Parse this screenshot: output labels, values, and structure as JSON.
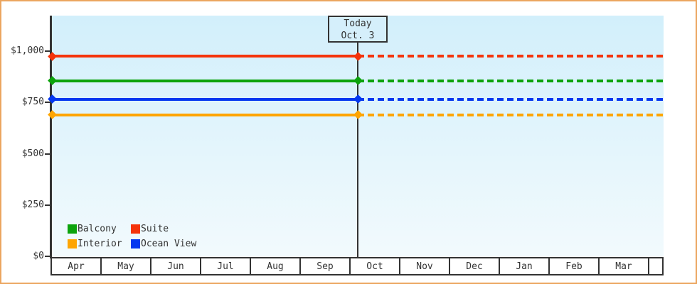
{
  "chart_data": {
    "type": "line",
    "title": "",
    "x_axis": {
      "months": [
        "Apr",
        "May",
        "Jun",
        "Jul",
        "Aug",
        "Sep",
        "Oct",
        "Nov",
        "Dec",
        "Jan",
        "Feb",
        "Mar"
      ]
    },
    "y_axis": {
      "range": [
        0,
        1000
      ],
      "ticks": [
        {
          "label": "$0",
          "value": 0
        },
        {
          "label": "$250",
          "value": 250
        },
        {
          "label": "$500",
          "value": 500
        },
        {
          "label": "$750",
          "value": 750
        },
        {
          "label": "$1,000",
          "value": 1000
        }
      ]
    },
    "series": [
      {
        "name": "Suite",
        "color": "#f5340b",
        "price": 975
      },
      {
        "name": "Balcony",
        "color": "#0ca30c",
        "price": 855
      },
      {
        "name": "Ocean View",
        "color": "#0437f0",
        "price": 765
      },
      {
        "name": "Interior",
        "color": "#fea502",
        "price": 690
      }
    ],
    "today_marker": {
      "line1": "Today",
      "line2": "Oct. 3",
      "month": "Oct",
      "day": 3
    },
    "line_style": {
      "before_today": "solid",
      "after_today": "dashed",
      "marker": "diamond"
    },
    "legend": {
      "position": "bottom-left",
      "order": [
        "Balcony",
        "Suite",
        "Interior",
        "Ocean View"
      ]
    }
  },
  "colors": {
    "frame_border": "#eba55f",
    "axis": "#333333",
    "plot_top": "#d2effb",
    "plot_bottom": "#f2fafd",
    "today_box_bg": "#d5effb"
  }
}
